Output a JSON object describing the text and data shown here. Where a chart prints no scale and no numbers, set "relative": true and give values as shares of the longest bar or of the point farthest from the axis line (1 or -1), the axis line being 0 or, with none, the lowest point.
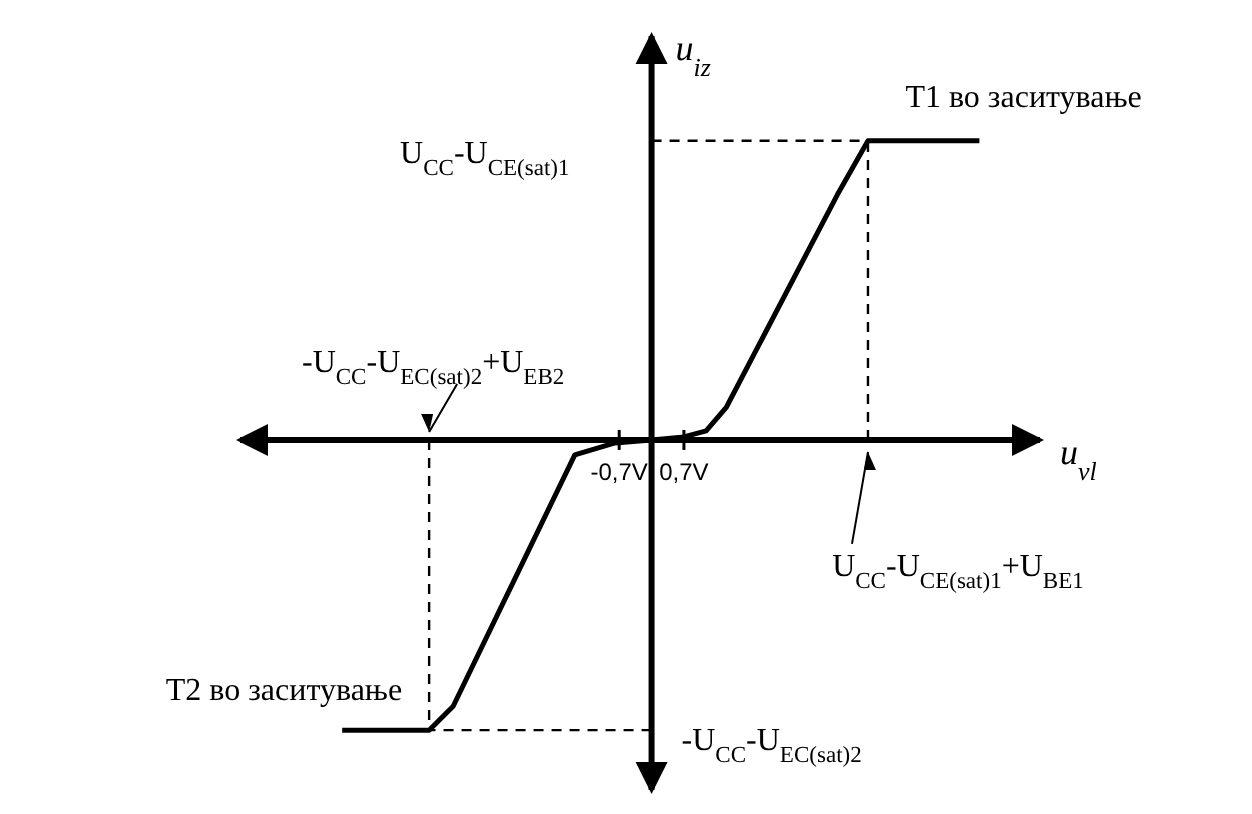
{
  "chart_data": {
    "type": "line",
    "relative": true,
    "marker": "none",
    "xlabel": "u$_{vl}$",
    "ylabel": "u$_{iz}$",
    "x": [
      -6.69,
      -5.6,
      -4.81,
      -4.29,
      -1.66,
      -0.79,
      0,
      0.7,
      1.18,
      1.62,
      4.02,
      4.68,
      7.09
    ],
    "values": [
      -0.97,
      -0.97,
      -0.97,
      -0.89,
      -0.05,
      -0.01,
      0,
      0.01,
      0.03,
      0.11,
      0.82,
      1,
      1
    ],
    "color": "#000000",
    "xlim": [
      -8.9,
      8.4
    ],
    "xticks": [
      {
        "value": -0.7,
        "label": "-0,7V"
      },
      {
        "value": 0.7,
        "label": "0,7V"
      }
    ],
    "ref_lines": [
      {
        "axis": "y",
        "value": 1,
        "label": "U$_{CC}$-U$_{CE(sat)1}$",
        "line_style": "dashed"
      },
      {
        "axis": "y",
        "value": -0.97,
        "label": "-U$_{CC}$-U$_{EC(sat)2}$",
        "line_style": "dashed"
      },
      {
        "axis": "x",
        "value": 4.68,
        "label": "U$_{CC}$-U$_{CE(sat)1}$+U$_{BE1}$",
        "line_style": "dashed"
      },
      {
        "axis": "x",
        "value": -4.81,
        "label": "-U$_{CC}$-U$_{EC(sat)2}$+U$_{EB2}$",
        "line_style": "dashed"
      }
    ],
    "annotations": [
      {
        "text": "T1 во заситување",
        "x": 7.09,
        "y": 1
      },
      {
        "text": "T2 во заситување",
        "x": -6.69,
        "y": -0.97
      }
    ]
  }
}
